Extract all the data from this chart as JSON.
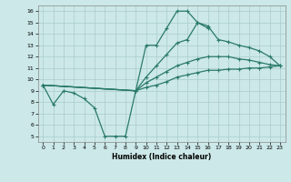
{
  "xlabel": "Humidex (Indice chaleur)",
  "bg_color": "#cce8e8",
  "grid_color": "#aacccc",
  "line_color": "#2a7a6a",
  "xlim": [
    -0.5,
    23.5
  ],
  "ylim": [
    4.5,
    16.5
  ],
  "xticks": [
    0,
    1,
    2,
    3,
    4,
    5,
    6,
    7,
    8,
    9,
    10,
    11,
    12,
    13,
    14,
    15,
    16,
    17,
    18,
    19,
    20,
    21,
    22,
    23
  ],
  "yticks": [
    5,
    6,
    7,
    8,
    9,
    10,
    11,
    12,
    13,
    14,
    15,
    16
  ],
  "line1_x": [
    0,
    1,
    2,
    3,
    4,
    5,
    6,
    7,
    8,
    9,
    10,
    11,
    12,
    13,
    14,
    15,
    16
  ],
  "line1_y": [
    9.5,
    7.8,
    9.0,
    8.8,
    8.3,
    7.5,
    5.0,
    5.0,
    5.0,
    9.0,
    13.0,
    13.0,
    14.5,
    16.0,
    16.0,
    15.0,
    14.5
  ],
  "line2_x": [
    0,
    9,
    10,
    11,
    12,
    13,
    14,
    15,
    16,
    17,
    18,
    19,
    20,
    21,
    22,
    23
  ],
  "line2_y": [
    9.5,
    9.0,
    10.2,
    11.2,
    12.2,
    13.2,
    13.5,
    15.0,
    14.7,
    13.5,
    13.3,
    13.0,
    12.8,
    12.5,
    12.0,
    11.2
  ],
  "line3_x": [
    0,
    9,
    10,
    11,
    12,
    13,
    14,
    15,
    16,
    17,
    18,
    19,
    20,
    21,
    22,
    23
  ],
  "line3_y": [
    9.5,
    9.0,
    9.7,
    10.2,
    10.7,
    11.2,
    11.5,
    11.8,
    12.0,
    12.0,
    12.0,
    11.8,
    11.7,
    11.5,
    11.3,
    11.2
  ],
  "line4_x": [
    0,
    9,
    10,
    11,
    12,
    13,
    14,
    15,
    16,
    17,
    18,
    19,
    20,
    21,
    22,
    23
  ],
  "line4_y": [
    9.5,
    9.0,
    9.3,
    9.5,
    9.8,
    10.2,
    10.4,
    10.6,
    10.8,
    10.8,
    10.9,
    10.9,
    11.0,
    11.0,
    11.1,
    11.2
  ]
}
